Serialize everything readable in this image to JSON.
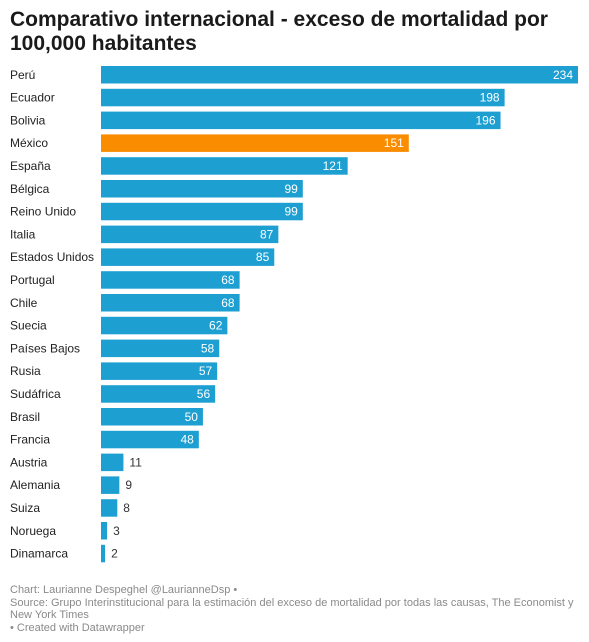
{
  "chart_data": {
    "type": "bar",
    "orientation": "horizontal",
    "title": "Comparativo internacional - exceso de mortalidad por 100,000 habitantes",
    "categories": [
      "Perú",
      "Ecuador",
      "Bolivia",
      "México",
      "España",
      "Bélgica",
      "Reino Unido",
      "Italia",
      "Estados Unidos",
      "Portugal",
      "Chile",
      "Suecia",
      "Países Bajos",
      "Rusia",
      "Sudáfrica",
      "Brasil",
      "Francia",
      "Austria",
      "Alemania",
      "Suiza",
      "Noruega",
      "Dinamarca"
    ],
    "values": [
      234,
      198,
      196,
      151,
      121,
      99,
      99,
      87,
      85,
      68,
      68,
      62,
      58,
      57,
      56,
      50,
      48,
      11,
      9,
      8,
      3,
      2
    ],
    "highlight_category": "México",
    "colors": {
      "default": "#1d9fd2",
      "highlight": "#fa8c00",
      "label_inside": "#ffffff",
      "label_outside": "#333333"
    },
    "xlim": [
      0,
      234
    ],
    "grid": false
  },
  "footer": {
    "credit": "Chart: Laurianne Despeghel @LaurianneDsp •",
    "source": "Source: Grupo Interinstitucional para la estimación del exceso de mortalidad por todas las causas, The Economist y New York Times",
    "created": "• Created with Datawrapper"
  }
}
